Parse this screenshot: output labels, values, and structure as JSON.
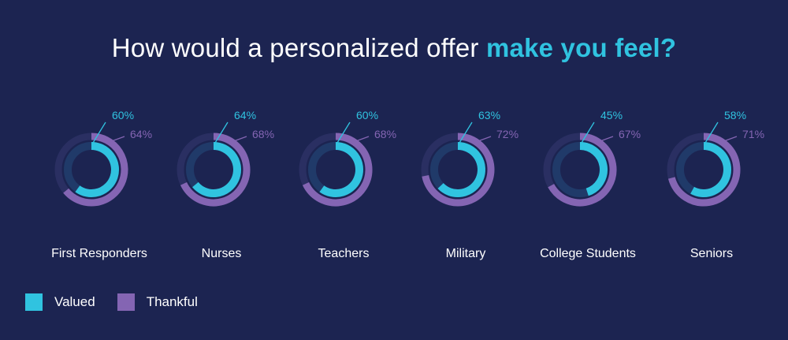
{
  "title": {
    "prefix": "How would a personalized offer ",
    "highlight": "make you feel?"
  },
  "colors": {
    "background": "#1c2451",
    "valued": "#30c3e0",
    "thankful": "#8465b3",
    "track_outer": "#2a2f62",
    "track_inner": "#203a69"
  },
  "chart_data": {
    "type": "donut",
    "categories": [
      "First Responders",
      "Nurses",
      "Teachers",
      "Military",
      "College Students",
      "Seniors"
    ],
    "series": [
      {
        "name": "Valued",
        "values": [
          60,
          64,
          60,
          63,
          45,
          58
        ],
        "labels": [
          "60%",
          "64%",
          "60%",
          "63%",
          "45%",
          "58%"
        ]
      },
      {
        "name": "Thankful",
        "values": [
          64,
          68,
          68,
          72,
          67,
          71
        ],
        "labels": [
          "64%",
          "68%",
          "68%",
          "72%",
          "67%",
          "71%"
        ]
      }
    ],
    "legend": "bottom-left"
  }
}
